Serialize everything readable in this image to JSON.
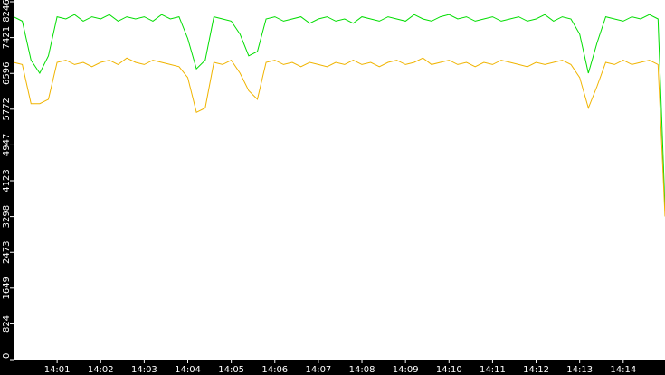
{
  "chart_data": {
    "type": "line",
    "x": [
      0.0,
      0.2,
      0.4,
      0.6,
      0.8,
      1.0,
      1.2,
      1.4,
      1.6,
      1.8,
      2.0,
      2.2,
      2.4,
      2.6,
      2.8,
      3.0,
      3.2,
      3.4,
      3.6,
      3.8,
      4.0,
      4.2,
      4.4,
      4.6,
      4.8,
      5.0,
      5.2,
      5.4,
      5.6,
      5.8,
      6.0,
      6.2,
      6.4,
      6.6,
      6.8,
      7.0,
      7.2,
      7.4,
      7.6,
      7.8,
      8.0,
      8.2,
      8.4,
      8.6,
      8.8,
      9.0,
      9.2,
      9.4,
      9.6,
      9.8,
      10.0,
      10.2,
      10.4,
      10.6,
      10.8,
      11.0,
      11.2,
      11.4,
      11.6,
      11.8,
      12.0,
      12.2,
      12.4,
      12.6,
      12.8,
      13.0,
      13.2,
      13.4,
      13.6,
      13.8,
      14.0,
      14.2,
      14.4,
      14.6,
      14.8,
      14.96
    ],
    "series": [
      {
        "color": "#00dd00",
        "values": [
          7900,
          7800,
          6900,
          6600,
          7000,
          7900,
          7850,
          7950,
          7800,
          7900,
          7850,
          7950,
          7800,
          7900,
          7850,
          7900,
          7800,
          7950,
          7850,
          7900,
          7400,
          6700,
          6900,
          7900,
          7850,
          7800,
          7500,
          7000,
          7100,
          7850,
          7900,
          7800,
          7850,
          7900,
          7750,
          7850,
          7900,
          7800,
          7850,
          7750,
          7900,
          7850,
          7800,
          7900,
          7850,
          7800,
          7950,
          7850,
          7800,
          7900,
          7950,
          7850,
          7900,
          7800,
          7850,
          7900,
          7800,
          7850,
          7900,
          7800,
          7850,
          7950,
          7800,
          7900,
          7850,
          7500,
          6600,
          7300,
          7900,
          7850,
          7800,
          7900,
          7850,
          7950,
          7850,
          3500
        ]
      },
      {
        "color": "#f0b400",
        "values": [
          6850,
          6800,
          5900,
          5900,
          6000,
          6850,
          6900,
          6800,
          6850,
          6750,
          6850,
          6900,
          6800,
          6950,
          6850,
          6800,
          6900,
          6850,
          6800,
          6750,
          6500,
          5700,
          5800,
          6850,
          6800,
          6900,
          6600,
          6200,
          6000,
          6850,
          6900,
          6800,
          6850,
          6750,
          6850,
          6800,
          6750,
          6850,
          6800,
          6900,
          6800,
          6850,
          6750,
          6850,
          6900,
          6800,
          6850,
          6950,
          6800,
          6850,
          6900,
          6800,
          6850,
          6750,
          6850,
          6800,
          6900,
          6850,
          6800,
          6750,
          6850,
          6800,
          6850,
          6900,
          6800,
          6500,
          5800,
          6300,
          6850,
          6800,
          6900,
          6800,
          6850,
          6900,
          6800,
          3300
        ]
      }
    ],
    "xlim": [
      0,
      14.96
    ],
    "xticks": [
      {
        "value": 1,
        "label": "14:01"
      },
      {
        "value": 2,
        "label": "14:02"
      },
      {
        "value": 3,
        "label": "14:03"
      },
      {
        "value": 4,
        "label": "14:04"
      },
      {
        "value": 5,
        "label": "14:05"
      },
      {
        "value": 6,
        "label": "14:06"
      },
      {
        "value": 7,
        "label": "14:07"
      },
      {
        "value": 8,
        "label": "14:08"
      },
      {
        "value": 9,
        "label": "14:09"
      },
      {
        "value": 10,
        "label": "14:10"
      },
      {
        "value": 11,
        "label": "14:11"
      },
      {
        "value": 12,
        "label": "14:12"
      },
      {
        "value": 13,
        "label": "14:13"
      },
      {
        "value": 14,
        "label": "14:14"
      }
    ],
    "ylim": [
      0,
      8246
    ],
    "yticks": [
      0,
      824,
      1649,
      2473,
      3298,
      4123,
      4947,
      5772,
      6596,
      7421,
      8246
    ]
  }
}
